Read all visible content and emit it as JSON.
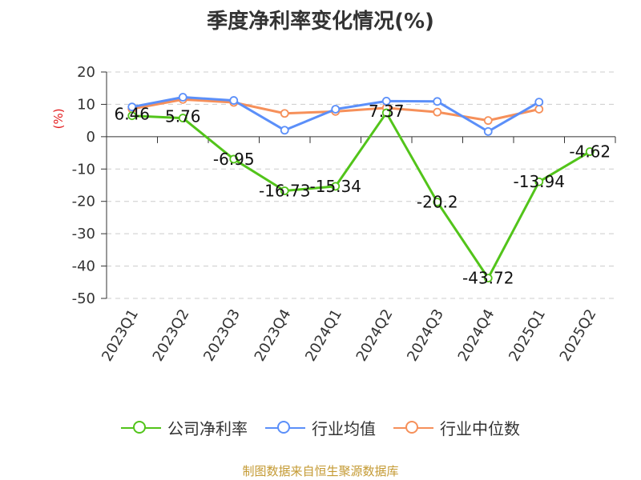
{
  "title": "季度净利率变化情况(%)",
  "source": "制图数据来自恒生聚源数据库",
  "colors": {
    "company": "#52c41a",
    "industry_avg": "#5b8ff9",
    "industry_median": "#f6905a",
    "grid": "#cccccc",
    "axis": "#333333",
    "ylabel": "#e31a1c"
  },
  "chart_data": {
    "type": "line",
    "title": "季度净利率变化情况(%)",
    "ylabel": "(%)",
    "xlabel": "",
    "ylim": [
      -50,
      20
    ],
    "yticks": [
      20,
      10,
      0,
      -10,
      -20,
      -30,
      -40,
      -50
    ],
    "grid": true,
    "legend_position": "bottom",
    "categories": [
      "2023Q1",
      "2023Q2",
      "2023Q3",
      "2023Q4",
      "2024Q1",
      "2024Q2",
      "2024Q3",
      "2024Q4",
      "2025Q1",
      "2025Q2"
    ],
    "series": [
      {
        "name": "公司净利率",
        "color": "#52c41a",
        "values": [
          6.46,
          5.76,
          -6.95,
          -16.73,
          -15.34,
          7.37,
          -20.2,
          -43.72,
          -13.94,
          -4.62
        ],
        "labels": [
          "6.46",
          "5.76",
          "-6.95",
          "-16.73",
          "-15.34",
          "7.37",
          "-20.2",
          "-43.72",
          "-13.94",
          "-4.62"
        ]
      },
      {
        "name": "行业均值",
        "color": "#5b8ff9",
        "values": [
          9.2,
          12.2,
          11.2,
          2.0,
          8.5,
          11.0,
          10.9,
          1.6,
          10.7,
          null
        ]
      },
      {
        "name": "行业中位数",
        "color": "#f6905a",
        "values": [
          8.6,
          11.5,
          10.6,
          7.2,
          7.8,
          8.9,
          7.6,
          5.0,
          8.5,
          null
        ]
      }
    ]
  }
}
